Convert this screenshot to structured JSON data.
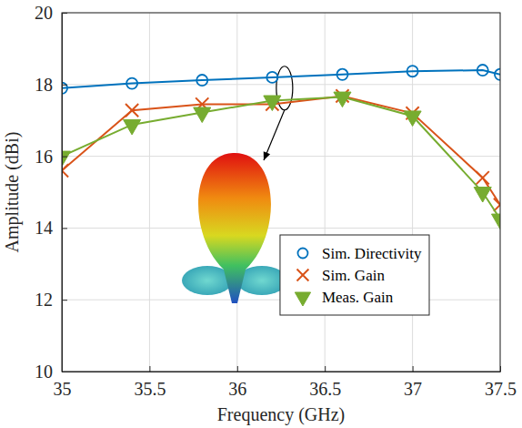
{
  "chart_data": {
    "type": "line",
    "x_label": "Frequency (GHz)",
    "y_label": "Amplitude (dBi)",
    "x": [
      35,
      35.4,
      35.8,
      36.2,
      36.6,
      37.0,
      37.4,
      37.5
    ],
    "series": [
      {
        "name": "Sim. Directivity",
        "color": "#0072bd",
        "marker": "circle",
        "line_style": "solid",
        "values": [
          17.9,
          18.03,
          18.12,
          18.2,
          18.28,
          18.37,
          18.4,
          18.28
        ]
      },
      {
        "name": "Sim. Gain",
        "color": "#d95319",
        "marker": "x",
        "line_style": "solid",
        "values": [
          15.6,
          17.28,
          17.45,
          17.45,
          17.68,
          17.2,
          15.4,
          14.65
        ]
      },
      {
        "name": "Meas. Gain",
        "color": "#77ac30",
        "marker": "triangle-down",
        "line_style": "solid",
        "values": [
          16.0,
          16.88,
          17.22,
          17.55,
          17.65,
          17.12,
          15.0,
          14.25
        ]
      }
    ],
    "xlim": [
      35,
      37.5
    ],
    "xticks": [
      35,
      35.5,
      36,
      36.5,
      37,
      37.5
    ],
    "ylim": [
      10,
      20
    ],
    "yticks": [
      10,
      12,
      14,
      16,
      18,
      20
    ],
    "grid": true,
    "legend": "right"
  }
}
